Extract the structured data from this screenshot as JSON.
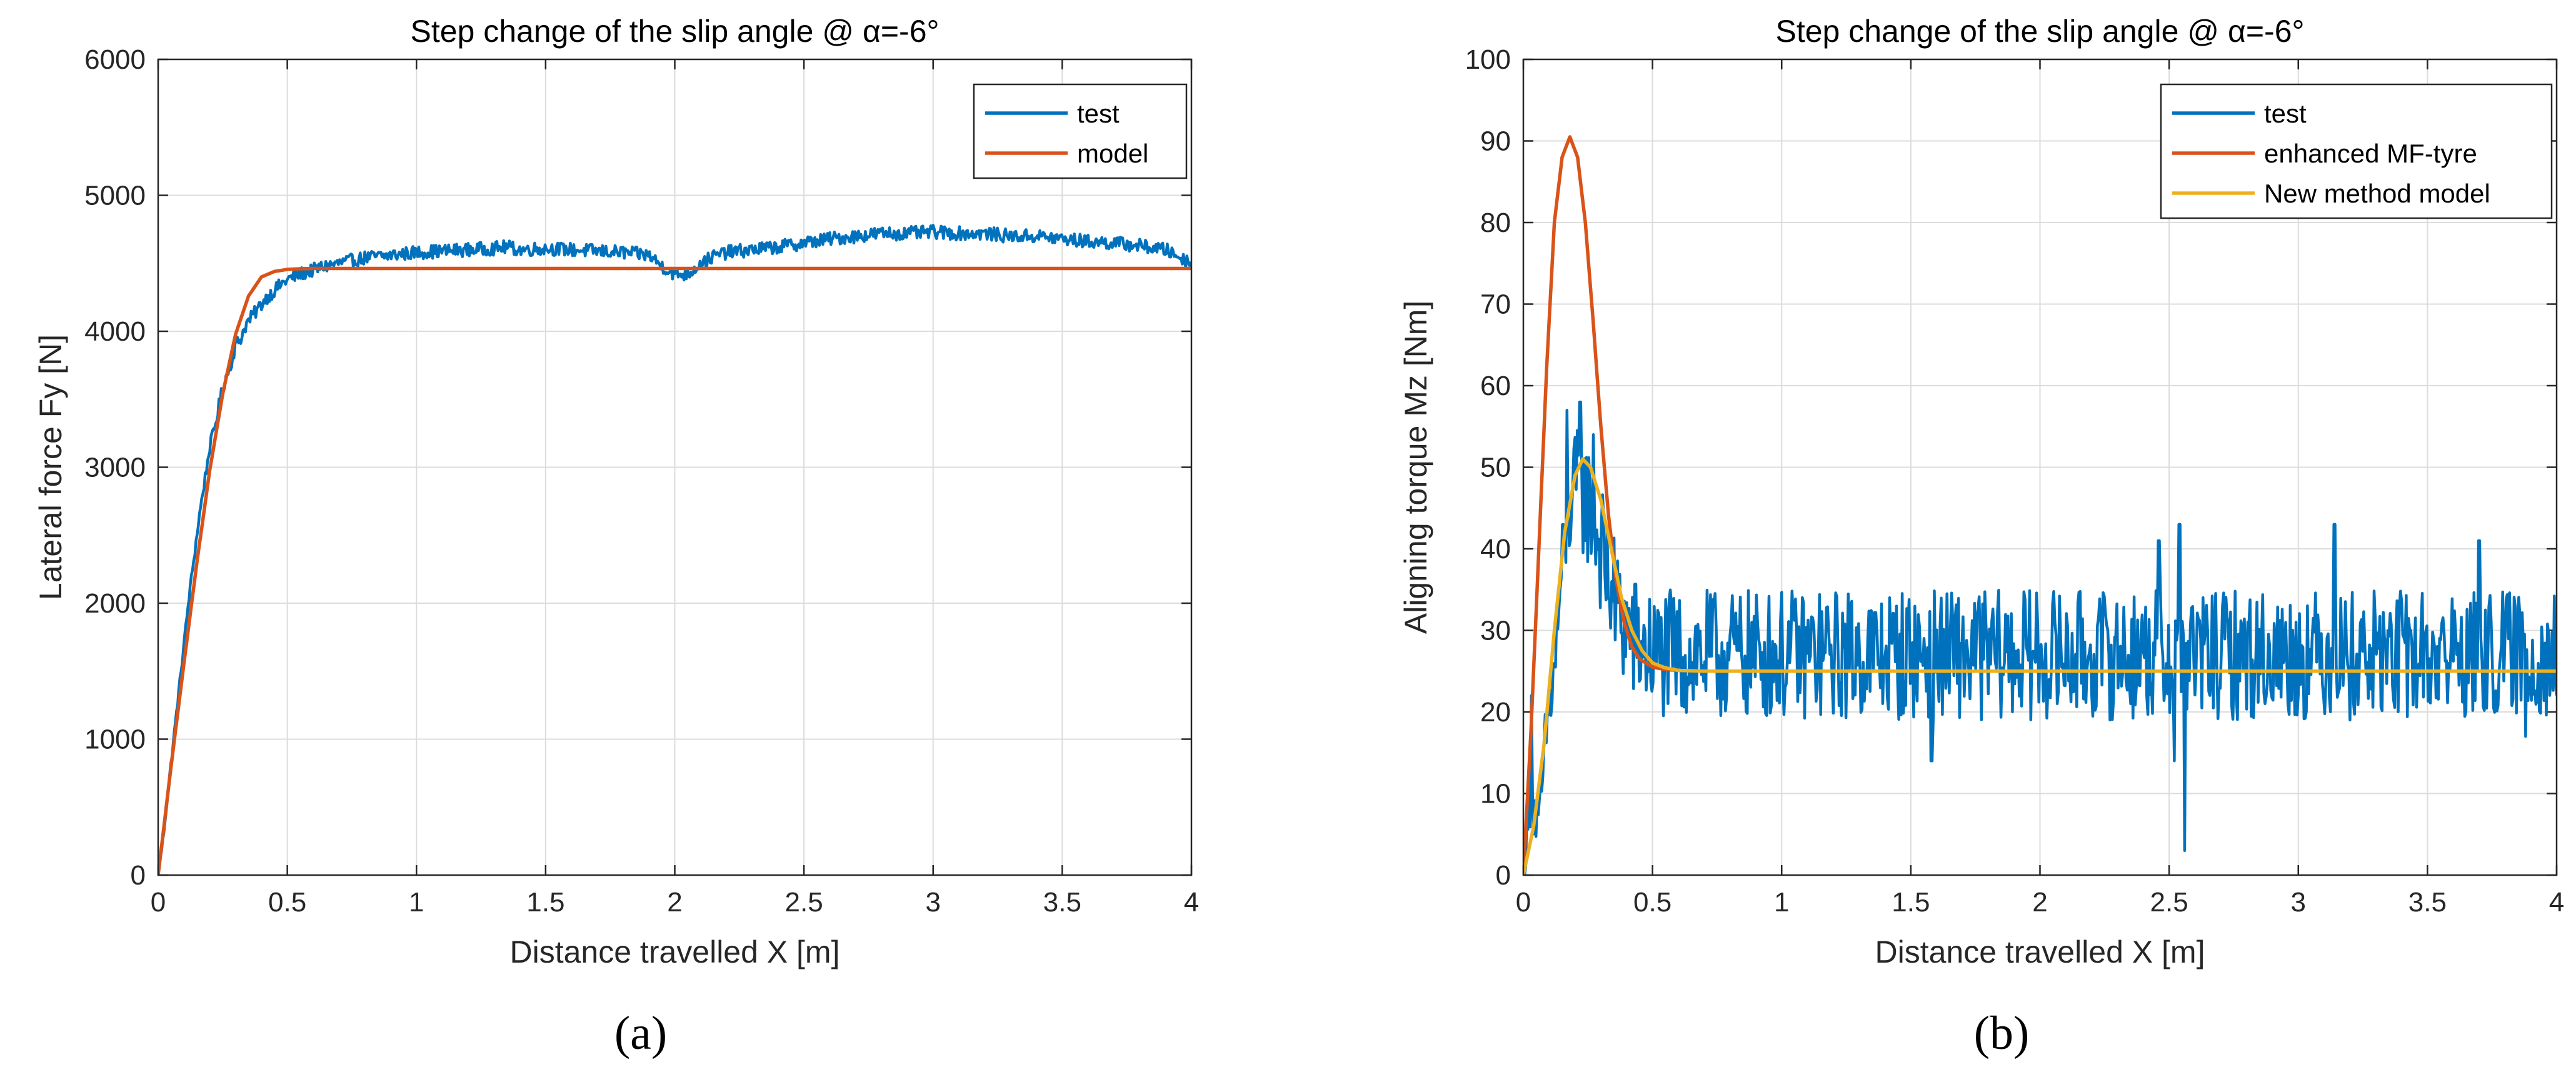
{
  "chart_data": [
    {
      "type": "line",
      "panel": "a",
      "title": "Step change of the slip angle @ α=-6°",
      "xlabel": "Distance travelled X [m]",
      "ylabel": "Lateral force Fy [N]",
      "xlim": [
        0,
        4
      ],
      "ylim": [
        0,
        6000
      ],
      "xticks": [
        "0",
        "0.5",
        "1",
        "1.5",
        "2",
        "2.5",
        "3",
        "3.5",
        "4"
      ],
      "yticks": [
        "0",
        "1000",
        "2000",
        "3000",
        "4000",
        "5000",
        "6000"
      ],
      "grid": true,
      "legend_position": "top-right",
      "series": [
        {
          "name": "test",
          "color": "#0072BD",
          "x": [
            0,
            0.02,
            0.04,
            0.06,
            0.08,
            0.1,
            0.12,
            0.14,
            0.16,
            0.18,
            0.2,
            0.22,
            0.24,
            0.26,
            0.28,
            0.3,
            0.32,
            0.34,
            0.36,
            0.38,
            0.4,
            0.42,
            0.44,
            0.46,
            0.48,
            0.5,
            0.55,
            0.6,
            0.65,
            0.7,
            0.75,
            0.8,
            0.9,
            1.0,
            1.1,
            1.2,
            1.3,
            1.35,
            1.4,
            1.5,
            1.6,
            1.7,
            1.8,
            1.9,
            1.95,
            2.0,
            2.05,
            2.1,
            2.15,
            2.2,
            2.3,
            2.4,
            2.5,
            2.6,
            2.7,
            2.8,
            2.9,
            3.0,
            3.1,
            3.2,
            3.3,
            3.4,
            3.5,
            3.6,
            3.7,
            3.8,
            3.9,
            3.95,
            4.0
          ],
          "values": [
            0,
            280,
            650,
            1000,
            1350,
            1700,
            2050,
            2350,
            2650,
            2900,
            3150,
            3300,
            3500,
            3650,
            3750,
            3900,
            3950,
            4050,
            4100,
            4150,
            4200,
            4250,
            4280,
            4320,
            4350,
            4380,
            4420,
            4450,
            4480,
            4500,
            4520,
            4540,
            4560,
            4580,
            4590,
            4600,
            4610,
            4620,
            4600,
            4610,
            4600,
            4590,
            4580,
            4560,
            4480,
            4420,
            4420,
            4500,
            4550,
            4580,
            4600,
            4620,
            4650,
            4680,
            4700,
            4720,
            4720,
            4730,
            4720,
            4720,
            4700,
            4700,
            4680,
            4660,
            4650,
            4630,
            4600,
            4550,
            4500
          ],
          "noise_amplitude": 50
        },
        {
          "name": "model",
          "color": "#D95319",
          "x": [
            0,
            0.05,
            0.1,
            0.15,
            0.2,
            0.25,
            0.3,
            0.35,
            0.4,
            0.45,
            0.5,
            0.55,
            0.6,
            0.7,
            0.8,
            1.0,
            1.5,
            2.0,
            2.5,
            3.0,
            3.5,
            4.0
          ],
          "values": [
            0,
            800,
            1560,
            2300,
            2980,
            3540,
            3980,
            4260,
            4400,
            4440,
            4455,
            4460,
            4462,
            4462,
            4462,
            4462,
            4462,
            4462,
            4462,
            4462,
            4462,
            4462
          ]
        }
      ]
    },
    {
      "type": "line",
      "panel": "b",
      "title": "Step change of the slip angle @ α=-6°",
      "xlabel": "Distance travelled X [m]",
      "ylabel": "Aligning torque Mz [Nm]",
      "xlim": [
        0,
        4
      ],
      "ylim": [
        0,
        100
      ],
      "xticks": [
        "0",
        "0.5",
        "1",
        "1.5",
        "2",
        "2.5",
        "3",
        "3.5",
        "4"
      ],
      "yticks": [
        "0",
        "10",
        "20",
        "30",
        "40",
        "50",
        "60",
        "70",
        "80",
        "90",
        "100"
      ],
      "grid": true,
      "legend_position": "top-right",
      "series": [
        {
          "name": "test",
          "color": "#0072BD",
          "x": [
            0,
            0.03,
            0.06,
            0.09,
            0.12,
            0.15,
            0.18,
            0.21,
            0.24,
            0.27,
            0.3,
            0.33,
            0.36,
            0.4,
            0.45,
            0.5,
            0.55,
            0.6,
            0.8,
            1.0,
            1.5,
            2.0,
            2.5,
            3.0,
            3.5,
            4.0
          ],
          "values": [
            0,
            10,
            5,
            18,
            25,
            38,
            45,
            48,
            46,
            44,
            40,
            36,
            33,
            30,
            28,
            27,
            27,
            27,
            27,
            27,
            27,
            27,
            27,
            27,
            27,
            27
          ],
          "noise_amplitude": 8,
          "spikes": [
            {
              "x": 0.03,
              "y": 22
            },
            {
              "x": 0.17,
              "y": 57
            },
            {
              "x": 0.22,
              "y": 58
            },
            {
              "x": 0.27,
              "y": 54
            },
            {
              "x": 1.58,
              "y": 14
            },
            {
              "x": 2.52,
              "y": 14
            },
            {
              "x": 2.54,
              "y": 43
            },
            {
              "x": 2.56,
              "y": 3
            },
            {
              "x": 2.46,
              "y": 41
            },
            {
              "x": 3.14,
              "y": 43
            },
            {
              "x": 3.7,
              "y": 41
            },
            {
              "x": 3.88,
              "y": 17
            }
          ]
        },
        {
          "name": "enhanced MF-tyre",
          "color": "#D95319",
          "x": [
            0,
            0.03,
            0.06,
            0.09,
            0.12,
            0.15,
            0.18,
            0.21,
            0.24,
            0.27,
            0.3,
            0.33,
            0.36,
            0.39,
            0.42,
            0.45,
            0.5,
            0.55,
            0.6,
            0.7,
            1.0,
            2.0,
            3.0,
            4.0
          ],
          "values": [
            0,
            18,
            40,
            62,
            80,
            88,
            90.5,
            88,
            80,
            68,
            55,
            44,
            36,
            31,
            28,
            26.5,
            25.5,
            25.2,
            25.1,
            25,
            25,
            25,
            25,
            25
          ]
        },
        {
          "name": "New method model",
          "color": "#EDB120",
          "x": [
            0,
            0.04,
            0.08,
            0.12,
            0.16,
            0.2,
            0.23,
            0.26,
            0.3,
            0.34,
            0.38,
            0.42,
            0.46,
            0.5,
            0.55,
            0.6,
            0.7,
            1.0,
            2.0,
            3.0,
            4.0
          ],
          "values": [
            0,
            6,
            16,
            30,
            42,
            49,
            51,
            50,
            46,
            40,
            34,
            30,
            27.5,
            26,
            25.4,
            25.1,
            25,
            25,
            25,
            25,
            25
          ]
        }
      ]
    }
  ],
  "subfigure_labels": [
    "(a)",
    "(b)"
  ]
}
